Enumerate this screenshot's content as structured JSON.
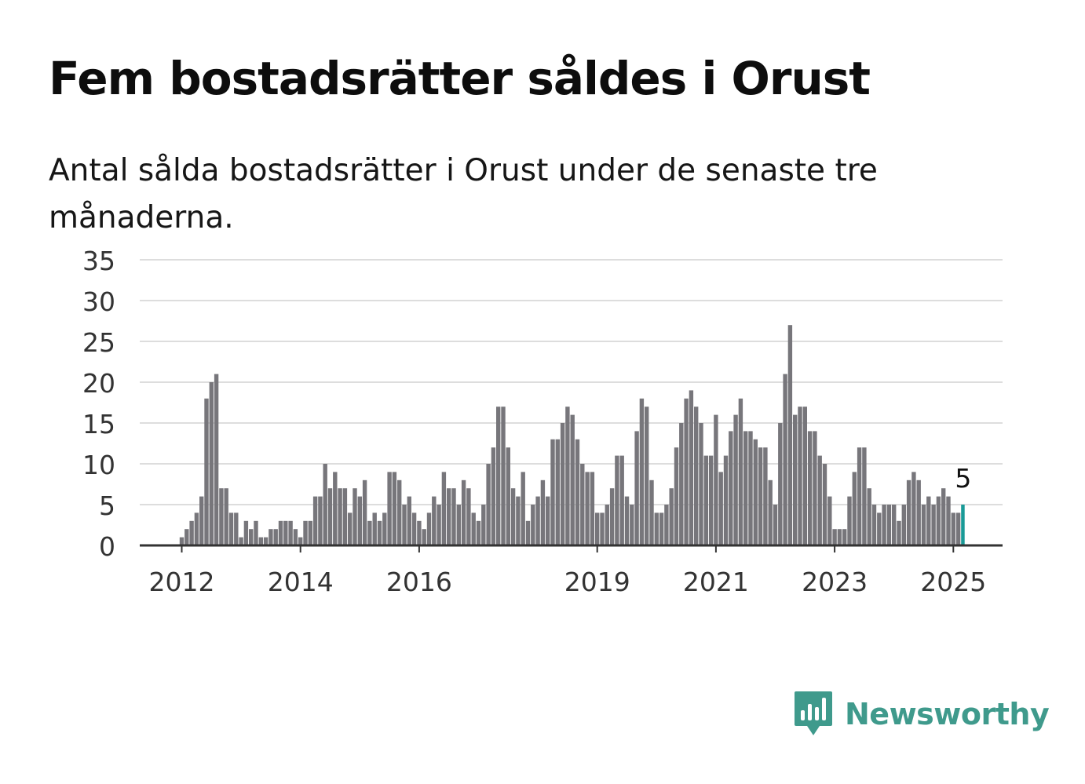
{
  "header": {
    "title": "Fem bostadsrätter såldes i Orust",
    "subtitle": "Antal sålda bostadsrätter i Orust under de senaste tre månaderna."
  },
  "brand": {
    "name": "Newsworthy",
    "color": "#3f9a8c",
    "icon": "newsworthy-logo-icon"
  },
  "colors": {
    "bar": "#77767b",
    "highlight": "#1a9a97",
    "grid": "#dddddd",
    "axis": "#333333"
  },
  "chart_data": {
    "type": "bar",
    "title": "Fem bostadsrätter såldes i Orust",
    "subtitle": "Antal sålda bostadsrätter i Orust under de senaste tre månaderna.",
    "ylim": [
      0,
      35
    ],
    "yticks": [
      0,
      5,
      10,
      15,
      20,
      25,
      30,
      35
    ],
    "grid": true,
    "x_start": "2011-04",
    "x_ticks": [
      {
        "label": "2012",
        "index": 9
      },
      {
        "label": "2014",
        "index": 33
      },
      {
        "label": "2016",
        "index": 57
      },
      {
        "label": "2019",
        "index": 93
      },
      {
        "label": "2021",
        "index": 117
      },
      {
        "label": "2023",
        "index": 141
      },
      {
        "label": "2025",
        "index": 165
      }
    ],
    "values": [
      0,
      0,
      0,
      0,
      0,
      0,
      0,
      0,
      0,
      1,
      2,
      3,
      4,
      6,
      18,
      20,
      21,
      7,
      7,
      4,
      4,
      1,
      3,
      2,
      3,
      1,
      1,
      2,
      2,
      3,
      3,
      3,
      2,
      1,
      3,
      3,
      6,
      6,
      10,
      7,
      9,
      7,
      7,
      4,
      7,
      6,
      8,
      3,
      4,
      3,
      4,
      9,
      9,
      8,
      5,
      6,
      4,
      3,
      2,
      4,
      6,
      5,
      9,
      7,
      7,
      5,
      8,
      7,
      4,
      3,
      5,
      10,
      12,
      17,
      17,
      12,
      7,
      6,
      9,
      3,
      5,
      6,
      8,
      6,
      13,
      13,
      15,
      17,
      16,
      13,
      10,
      9,
      9,
      4,
      4,
      5,
      7,
      11,
      11,
      6,
      5,
      14,
      18,
      17,
      8,
      4,
      4,
      5,
      7,
      12,
      15,
      18,
      19,
      17,
      15,
      11,
      11,
      16,
      9,
      11,
      14,
      16,
      18,
      14,
      14,
      13,
      12,
      12,
      8,
      5,
      15,
      21,
      27,
      16,
      17,
      17,
      14,
      14,
      11,
      10,
      6,
      2,
      2,
      2,
      6,
      9,
      12,
      12,
      7,
      5,
      4,
      5,
      5,
      5,
      3,
      5,
      8,
      9,
      8,
      5,
      6,
      5,
      6,
      7,
      6,
      4,
      4,
      5
    ],
    "highlight_index": 167,
    "annotation": "5"
  }
}
